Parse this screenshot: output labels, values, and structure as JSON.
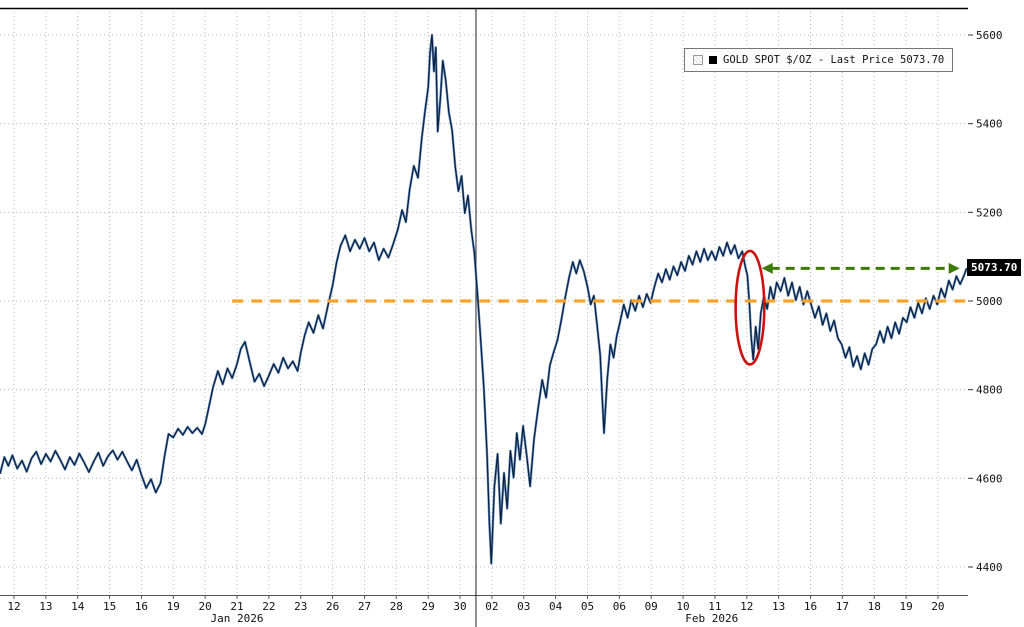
{
  "chart_data": {
    "type": "line",
    "title": "",
    "legend_label": "GOLD SPOT $/OZ - Last Price 5073.70",
    "series_name": "GOLD SPOT $/OZ",
    "last_price": 5073.7,
    "last_price_label": "5073.70",
    "ylim": [
      4337,
      5661
    ],
    "yticks": [
      4400,
      4600,
      4800,
      5000,
      5200,
      5400,
      5600
    ],
    "x_tick_labels": [
      "12",
      "13",
      "14",
      "15",
      "16",
      "19",
      "20",
      "21",
      "22",
      "23",
      "26",
      "27",
      "28",
      "29",
      "30",
      "02",
      "03",
      "04",
      "05",
      "06",
      "09",
      "10",
      "11",
      "12",
      "13",
      "16",
      "17",
      "18",
      "19",
      "20"
    ],
    "month_labels": [
      {
        "label": "Jan 2026",
        "day": 7.0
      },
      {
        "label": "Feb 2026",
        "day": 21.9
      }
    ],
    "month_separator_day": 14.5,
    "grid": true,
    "legend_position": "top-right",
    "colors": {
      "line": "#0b1f3a",
      "line_halo": "#3f76b8",
      "grid": "#b8b8b8",
      "axis_text": "#111111",
      "separator": "#222222",
      "frame": "#000000",
      "orange": "#f7a32b",
      "green": "#3b7a04",
      "red": "#cc1111"
    },
    "annotations": {
      "support_line": {
        "type": "hline",
        "y": 5000,
        "day_start": 6.85,
        "day_end": 29.9,
        "style": "dashed"
      },
      "level_arrow": {
        "type": "double_arrow",
        "y": 5073.7,
        "day_start": 23.5,
        "day_end": 29.65,
        "style": "dashed"
      },
      "highlight_ellipse": {
        "type": "ellipse",
        "day_center": 23.1,
        "price_center": 4985,
        "day_radius": 0.45,
        "price_radius": 128
      }
    },
    "series": [
      {
        "name": "GOLD SPOT $/OZ",
        "points": [
          [
            -0.44,
            4610
          ],
          [
            -0.3,
            4648
          ],
          [
            -0.18,
            4628
          ],
          [
            -0.05,
            4652
          ],
          [
            0.1,
            4622
          ],
          [
            0.25,
            4640
          ],
          [
            0.4,
            4615
          ],
          [
            0.55,
            4645
          ],
          [
            0.7,
            4660
          ],
          [
            0.85,
            4632
          ],
          [
            1.0,
            4655
          ],
          [
            1.15,
            4638
          ],
          [
            1.3,
            4662
          ],
          [
            1.45,
            4642
          ],
          [
            1.6,
            4620
          ],
          [
            1.75,
            4648
          ],
          [
            1.9,
            4630
          ],
          [
            2.05,
            4656
          ],
          [
            2.2,
            4636
          ],
          [
            2.35,
            4614
          ],
          [
            2.5,
            4638
          ],
          [
            2.65,
            4658
          ],
          [
            2.8,
            4628
          ],
          [
            2.95,
            4650
          ],
          [
            3.1,
            4663
          ],
          [
            3.25,
            4642
          ],
          [
            3.4,
            4660
          ],
          [
            3.55,
            4638
          ],
          [
            3.7,
            4618
          ],
          [
            3.85,
            4642
          ],
          [
            4.0,
            4608
          ],
          [
            4.15,
            4578
          ],
          [
            4.3,
            4598
          ],
          [
            4.45,
            4568
          ],
          [
            4.6,
            4590
          ],
          [
            4.72,
            4648
          ],
          [
            4.85,
            4700
          ],
          [
            5.0,
            4692
          ],
          [
            5.15,
            4712
          ],
          [
            5.3,
            4698
          ],
          [
            5.45,
            4716
          ],
          [
            5.6,
            4702
          ],
          [
            5.75,
            4714
          ],
          [
            5.9,
            4700
          ],
          [
            6.0,
            4722
          ],
          [
            6.12,
            4762
          ],
          [
            6.25,
            4806
          ],
          [
            6.4,
            4842
          ],
          [
            6.55,
            4812
          ],
          [
            6.7,
            4848
          ],
          [
            6.85,
            4826
          ],
          [
            7.0,
            4858
          ],
          [
            7.12,
            4892
          ],
          [
            7.25,
            4908
          ],
          [
            7.4,
            4862
          ],
          [
            7.55,
            4818
          ],
          [
            7.7,
            4836
          ],
          [
            7.85,
            4808
          ],
          [
            8.0,
            4832
          ],
          [
            8.15,
            4858
          ],
          [
            8.3,
            4838
          ],
          [
            8.45,
            4872
          ],
          [
            8.6,
            4848
          ],
          [
            8.75,
            4864
          ],
          [
            8.9,
            4842
          ],
          [
            9.0,
            4882
          ],
          [
            9.12,
            4922
          ],
          [
            9.25,
            4952
          ],
          [
            9.4,
            4928
          ],
          [
            9.55,
            4968
          ],
          [
            9.7,
            4938
          ],
          [
            9.85,
            4988
          ],
          [
            10.0,
            5035
          ],
          [
            10.12,
            5085
          ],
          [
            10.25,
            5125
          ],
          [
            10.4,
            5148
          ],
          [
            10.55,
            5112
          ],
          [
            10.7,
            5138
          ],
          [
            10.85,
            5118
          ],
          [
            11.0,
            5142
          ],
          [
            11.15,
            5112
          ],
          [
            11.3,
            5132
          ],
          [
            11.45,
            5092
          ],
          [
            11.6,
            5118
          ],
          [
            11.75,
            5098
          ],
          [
            11.9,
            5128
          ],
          [
            12.05,
            5162
          ],
          [
            12.18,
            5205
          ],
          [
            12.3,
            5178
          ],
          [
            12.42,
            5252
          ],
          [
            12.55,
            5305
          ],
          [
            12.68,
            5278
          ],
          [
            12.8,
            5368
          ],
          [
            12.9,
            5428
          ],
          [
            13.0,
            5482
          ],
          [
            13.06,
            5562
          ],
          [
            13.12,
            5600
          ],
          [
            13.18,
            5518
          ],
          [
            13.24,
            5572
          ],
          [
            13.3,
            5382
          ],
          [
            13.38,
            5455
          ],
          [
            13.46,
            5542
          ],
          [
            13.55,
            5498
          ],
          [
            13.65,
            5425
          ],
          [
            13.75,
            5385
          ],
          [
            13.85,
            5302
          ],
          [
            13.95,
            5248
          ],
          [
            14.05,
            5282
          ],
          [
            14.15,
            5198
          ],
          [
            14.25,
            5238
          ],
          [
            14.35,
            5162
          ],
          [
            14.45,
            5108
          ],
          [
            14.55,
            5012
          ],
          [
            14.65,
            4912
          ],
          [
            14.75,
            4802
          ],
          [
            14.85,
            4652
          ],
          [
            14.92,
            4498
          ],
          [
            14.98,
            4408
          ],
          [
            15.08,
            4582
          ],
          [
            15.18,
            4655
          ],
          [
            15.28,
            4498
          ],
          [
            15.38,
            4612
          ],
          [
            15.48,
            4532
          ],
          [
            15.58,
            4662
          ],
          [
            15.68,
            4602
          ],
          [
            15.78,
            4702
          ],
          [
            15.88,
            4642
          ],
          [
            15.98,
            4718
          ],
          [
            16.1,
            4648
          ],
          [
            16.2,
            4582
          ],
          [
            16.32,
            4688
          ],
          [
            16.45,
            4758
          ],
          [
            16.58,
            4822
          ],
          [
            16.7,
            4782
          ],
          [
            16.82,
            4855
          ],
          [
            16.94,
            4885
          ],
          [
            17.06,
            4912
          ],
          [
            17.18,
            4958
          ],
          [
            17.3,
            5008
          ],
          [
            17.42,
            5052
          ],
          [
            17.54,
            5088
          ],
          [
            17.65,
            5062
          ],
          [
            17.76,
            5092
          ],
          [
            17.88,
            5068
          ],
          [
            18.0,
            5032
          ],
          [
            18.1,
            4992
          ],
          [
            18.2,
            5012
          ],
          [
            18.3,
            4948
          ],
          [
            18.4,
            4878
          ],
          [
            18.46,
            4788
          ],
          [
            18.52,
            4702
          ],
          [
            18.62,
            4822
          ],
          [
            18.72,
            4902
          ],
          [
            18.82,
            4872
          ],
          [
            18.92,
            4922
          ],
          [
            19.02,
            4952
          ],
          [
            19.14,
            4992
          ],
          [
            19.26,
            4962
          ],
          [
            19.38,
            5002
          ],
          [
            19.5,
            4978
          ],
          [
            19.62,
            5012
          ],
          [
            19.74,
            4986
          ],
          [
            19.86,
            5016
          ],
          [
            19.98,
            4996
          ],
          [
            20.1,
            5032
          ],
          [
            20.22,
            5062
          ],
          [
            20.34,
            5042
          ],
          [
            20.46,
            5072
          ],
          [
            20.58,
            5048
          ],
          [
            20.7,
            5078
          ],
          [
            20.82,
            5058
          ],
          [
            20.94,
            5088
          ],
          [
            21.06,
            5068
          ],
          [
            21.18,
            5102
          ],
          [
            21.3,
            5082
          ],
          [
            21.42,
            5112
          ],
          [
            21.54,
            5088
          ],
          [
            21.66,
            5118
          ],
          [
            21.78,
            5092
          ],
          [
            21.9,
            5112
          ],
          [
            22.02,
            5092
          ],
          [
            22.14,
            5122
          ],
          [
            22.26,
            5102
          ],
          [
            22.38,
            5132
          ],
          [
            22.5,
            5106
          ],
          [
            22.62,
            5126
          ],
          [
            22.74,
            5096
          ],
          [
            22.86,
            5112
          ],
          [
            22.95,
            5078
          ],
          [
            23.02,
            5058
          ],
          [
            23.08,
            4998
          ],
          [
            23.14,
            4918
          ],
          [
            23.2,
            4868
          ],
          [
            23.28,
            4942
          ],
          [
            23.36,
            4892
          ],
          [
            23.44,
            4972
          ],
          [
            23.54,
            5012
          ],
          [
            23.64,
            4982
          ],
          [
            23.74,
            5032
          ],
          [
            23.84,
            5002
          ],
          [
            23.94,
            5042
          ],
          [
            24.06,
            5022
          ],
          [
            24.18,
            5052
          ],
          [
            24.3,
            5012
          ],
          [
            24.42,
            5042
          ],
          [
            24.54,
            5002
          ],
          [
            24.66,
            5032
          ],
          [
            24.78,
            4992
          ],
          [
            24.9,
            5022
          ],
          [
            25.02,
            4992
          ],
          [
            25.14,
            4962
          ],
          [
            25.26,
            4988
          ],
          [
            25.38,
            4946
          ],
          [
            25.5,
            4972
          ],
          [
            25.62,
            4932
          ],
          [
            25.74,
            4956
          ],
          [
            25.86,
            4916
          ],
          [
            25.98,
            4902
          ],
          [
            26.1,
            4872
          ],
          [
            26.22,
            4896
          ],
          [
            26.34,
            4852
          ],
          [
            26.46,
            4876
          ],
          [
            26.58,
            4846
          ],
          [
            26.7,
            4882
          ],
          [
            26.82,
            4856
          ],
          [
            26.94,
            4892
          ],
          [
            27.06,
            4902
          ],
          [
            27.18,
            4932
          ],
          [
            27.3,
            4906
          ],
          [
            27.42,
            4942
          ],
          [
            27.54,
            4916
          ],
          [
            27.66,
            4952
          ],
          [
            27.78,
            4926
          ],
          [
            27.9,
            4962
          ],
          [
            28.02,
            4952
          ],
          [
            28.14,
            4986
          ],
          [
            28.26,
            4962
          ],
          [
            28.38,
            4996
          ],
          [
            28.5,
            4972
          ],
          [
            28.62,
            5006
          ],
          [
            28.74,
            4982
          ],
          [
            28.86,
            5012
          ],
          [
            28.98,
            4992
          ],
          [
            29.1,
            5028
          ],
          [
            29.22,
            5008
          ],
          [
            29.34,
            5046
          ],
          [
            29.46,
            5026
          ],
          [
            29.58,
            5056
          ],
          [
            29.7,
            5038
          ],
          [
            29.82,
            5058
          ],
          [
            29.9,
            5073.7
          ]
        ]
      }
    ]
  }
}
